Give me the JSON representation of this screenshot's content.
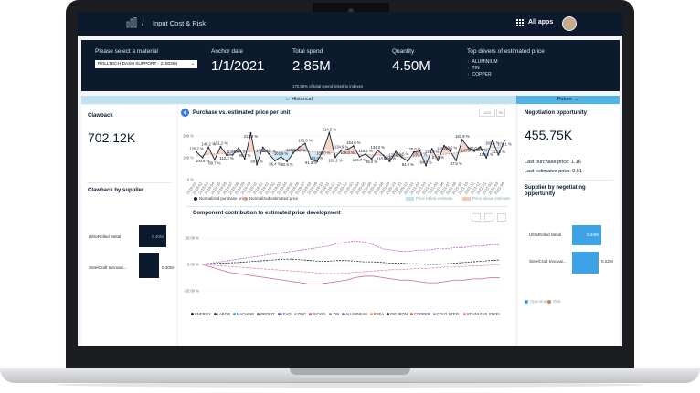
{
  "app": {
    "title": "Input Cost & Risk",
    "apps_label": "All apps"
  },
  "header": {
    "material_label": "Please select a material",
    "material_value": "ROLLTECH DASH SUPPORT - 2180394",
    "anchor_label": "Anchor date",
    "anchor_value": "1/1/2021",
    "spend_label": "Total spend",
    "spend_value": "2.85M",
    "spend_note": "170.58% of total spend linked to indexes",
    "quantity_label": "Quantity",
    "quantity_value": "4.50M",
    "drivers_label": "Top drivers of estimated price",
    "drivers": [
      "ALUMINIUM",
      "TIN",
      "COPPER"
    ]
  },
  "tabs": {
    "historical": "←  Historical",
    "future": "Future  →"
  },
  "clawback": {
    "title": "Clawback",
    "value": "702.12K",
    "by_supplier_title": "Clawback by supplier",
    "suppliers": [
      {
        "name": "UltraRolled Metal",
        "value": "0.40M",
        "share": 1.0
      },
      {
        "name": "SteelCraft Innovati...",
        "value": "0.30M",
        "share": 0.74
      }
    ]
  },
  "chart1": {
    "title": "Purchase vs. estimated price per unit",
    "toggle_a": "12/3",
    "toggle_b": "%",
    "legend": [
      "Normalized purchase price",
      "Normalized estimated price"
    ],
    "band_legend": [
      "Price below estimate",
      "Price above estimate"
    ]
  },
  "chart2": {
    "title": "Component contribution to estimated price development",
    "legend": [
      "ENERGY",
      "LABOR",
      "MACHINE",
      "PROFIT",
      "LEAD",
      "ZINC",
      "NICKEL",
      "TIN",
      "ALUMINIUM",
      "RSEA",
      "PIG IRON",
      "COPPER",
      "COLD STEEL",
      "STAINLESS STEEL"
    ]
  },
  "negotiation": {
    "title": "Negotiation opportunity",
    "value": "455.75K",
    "last_purchase": "Last purchase price: 1.16",
    "last_estimated": "Last estimated price: 0.51",
    "by_supplier_title": "Supplier by negotiating opportunity",
    "suppliers": [
      {
        "name": "UltraRolled Metal",
        "value": "0.24M",
        "share": 1.0
      },
      {
        "name": "SteelCraft Innovat...",
        "value": "0.22M",
        "share": 0.92
      }
    ],
    "legend": [
      "Opportunity",
      "Risk"
    ]
  },
  "colors": {
    "navy": "#0b1a2c",
    "accent": "#3ea3e6",
    "band_below": "#bfe1f3",
    "band_above": "#f4c7b8",
    "purchase_line": "#1a2233",
    "estimate_line": "#d79a7f"
  },
  "chart_data": [
    {
      "type": "line",
      "title": "Purchase vs. estimated price per unit",
      "y_ticks": [
        "200 %",
        "100 %",
        "0 %"
      ],
      "ylim": [
        0,
        250
      ],
      "series": [
        {
          "name": "Normalized purchase price",
          "values": [
            126.2,
            100.9,
            148.2,
            89.7,
            151.2,
            112.2,
            113.1,
            145.8,
            95.1,
            213.3,
            68.5,
            148.0,
            117.7,
            86.4,
            103.9,
            82.9,
            120.9,
            148.7,
            165.0,
            91.3,
            82.8,
            135.0,
            214.5,
            102.2,
            134.9,
            138.0,
            154.0,
            104.7,
            116.2,
            95.0,
            134.0,
            110.3,
            82.6,
            128.0,
            102.5,
            84.0,
            126.0,
            130.8,
            64.1,
            141.0,
            87.6,
            155.3,
            130.5,
            87.5,
            182.9,
            147.0,
            130.0,
            150.0,
            100.0,
            180.3,
            113.5,
            178.1
          ]
        },
        {
          "name": "Normalized estimated price",
          "values": [
            110,
            112,
            115,
            118,
            120,
            119,
            121,
            125,
            124,
            128,
            130,
            129,
            127,
            126,
            128,
            130,
            132,
            131,
            130,
            128,
            126,
            125,
            123,
            122,
            121,
            120,
            118,
            116,
            115,
            113,
            112,
            110,
            108,
            106,
            104,
            103,
            105,
            107,
            109,
            111,
            113,
            116,
            119,
            122,
            126,
            130,
            134,
            138,
            142,
            146,
            150,
            153
          ]
        }
      ],
      "data_labels": [
        "126.2 %",
        "100.9 %",
        "148.2 %",
        "89.7 %",
        "151.2 %",
        "112.2 %",
        "113.1 %",
        "145.8 %",
        "95.1 %",
        "213.3 %",
        "68.5 %",
        "148.0 %",
        "117.7 %",
        "86.4 %",
        "103.9 %",
        "82.9 %",
        "120.9 %",
        "148.7 %",
        "165.0 %",
        "91.3 %",
        "82.8 %",
        "135.0 %",
        "214.5 %",
        "102.2 %",
        "134.9 %",
        "138.0 %",
        "154.0 %",
        "104.7 %",
        "116.2 %",
        "95.0 %",
        "134.0 %",
        "110.3 %",
        "82.6 %",
        "128.0 %",
        "102.5 %",
        "84.0 %",
        "126.0 %",
        "130.8 %",
        "64.1 %",
        "141.0 %",
        "87.6 %",
        "155.3 %",
        "130.5 %",
        "87.5 %",
        "182.9 %",
        "147.0 %",
        "130.0 %",
        "150.0 %",
        "100.0 %",
        "180.3 %",
        "113.5 %",
        "178.1 %"
      ],
      "x_labels": [
        "2018-01",
        "2018-02",
        "2018-03",
        "2018-04",
        "2018-05",
        "2018-06",
        "2018-07",
        "2018-08",
        "2018-09",
        "2018-10",
        "2018-11",
        "2018-12",
        "2019-01",
        "2019-02",
        "2019-03",
        "2019-04",
        "2019-05",
        "2019-06",
        "2019-07",
        "2019-08",
        "2019-09",
        "2019-10",
        "2019-11",
        "2019-12",
        "2020-01",
        "2020-02",
        "2020-03",
        "2020-04",
        "2020-05",
        "2020-06",
        "2020-07",
        "2020-08",
        "2020-09",
        "2020-10",
        "2020-11",
        "2020-12",
        "2021-01",
        "2021-02",
        "2021-03",
        "2021-04",
        "2021-05",
        "2021-06",
        "2021-07",
        "2021-08",
        "2021-09",
        "2021-10",
        "2021-11",
        "2021-12",
        "2022-01",
        "2022-02",
        "2022-03",
        "2022-04"
      ]
    },
    {
      "type": "line",
      "title": "Component contribution to estimated price development",
      "y_ticks": [
        "20.00 %",
        "0.00 %",
        "-20.00 %"
      ],
      "ylim": [
        -25,
        25
      ],
      "series": [
        {
          "name": "ENERGY",
          "values": [
            0,
            0.5,
            1,
            1.2,
            1.5,
            2,
            2.5,
            3,
            3.5,
            4,
            4,
            3.5,
            3,
            2.5,
            2.5,
            3,
            3,
            2.5,
            2,
            2,
            1.5,
            1,
            1,
            0.5,
            0.5,
            0,
            0,
            0.5,
            1,
            1.5,
            2,
            2.5,
            3,
            3.5
          ]
        },
        {
          "name": "NICKEL",
          "values": [
            0,
            -2,
            -4,
            -6,
            -7,
            -8,
            -9,
            -10,
            -11,
            -12,
            -13,
            -14,
            -15,
            -15,
            -14,
            -13,
            -12,
            -10,
            -9,
            -9,
            -10,
            -11,
            -12,
            -12,
            -13,
            -14,
            -14,
            -13,
            -12,
            -12,
            -11,
            -11,
            -10,
            -10
          ]
        },
        {
          "name": "ALUMINIUM",
          "values": [
            0,
            1,
            2,
            3,
            4,
            5,
            6,
            7,
            8,
            9,
            10,
            11,
            12,
            13,
            14,
            16,
            17,
            18,
            17,
            15,
            12,
            11,
            10,
            10,
            11,
            11,
            12,
            12,
            13,
            13,
            14,
            14,
            15,
            15
          ]
        },
        {
          "name": "STAINLESS STEEL",
          "values": [
            0,
            -0.5,
            -1,
            -1.5,
            -2,
            -2.5,
            -3,
            -3.5,
            -4,
            -4.5,
            -5,
            -5.5,
            -6,
            -6.5,
            -7,
            -7,
            -6.5,
            -6,
            -5.5,
            -5,
            -4.5,
            -4,
            -4,
            -3.5,
            -3,
            -3,
            -2.5,
            -2,
            -2,
            -1.5,
            -1,
            -1,
            -0.5,
            0
          ]
        }
      ]
    },
    {
      "type": "bar",
      "title": "Clawback by supplier",
      "categories": [
        "UltraRolled Metal",
        "SteelCraft Innovati..."
      ],
      "values": [
        0.4,
        0.3
      ]
    },
    {
      "type": "bar",
      "title": "Supplier by negotiating opportunity",
      "categories": [
        "UltraRolled Metal",
        "SteelCraft Innovat..."
      ],
      "values": [
        0.24,
        0.22
      ]
    }
  ]
}
